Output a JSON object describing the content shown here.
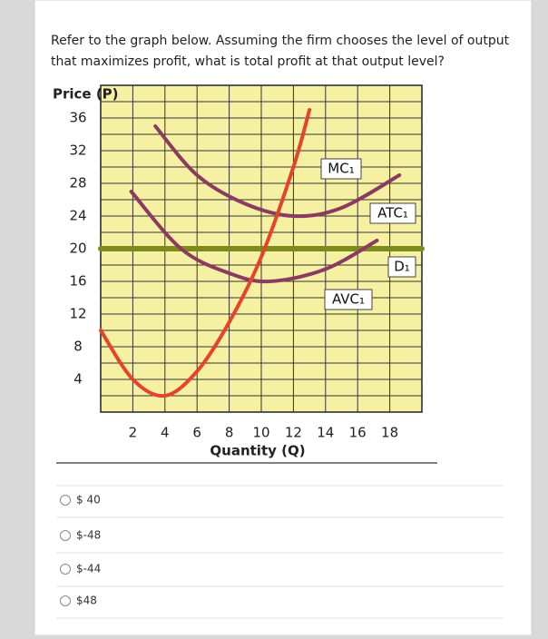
{
  "question": "Refer to the graph below. Assuming the firm chooses the level of output that maximizes profit, what is total profit at that output level?",
  "question_lines": [
    "Refer to the graph below. Assuming the firm chooses the level of output",
    "that maximizes profit, what is total profit at that output level?"
  ],
  "chart_data": {
    "type": "line",
    "y_label": "Price (P)",
    "x_label": "Quantity (Q)",
    "xlim": [
      0,
      20
    ],
    "ylim": [
      0,
      40
    ],
    "xticks": [
      2,
      4,
      6,
      8,
      10,
      12,
      14,
      16,
      18
    ],
    "yticks": [
      4,
      8,
      12,
      16,
      20,
      24,
      28,
      32,
      36
    ],
    "grid": true,
    "background": "#f6f0a2",
    "series": [
      {
        "name": "MC₁",
        "color": "#e3442b",
        "x": [
          0,
          2,
          4,
          6,
          8,
          10,
          12,
          13
        ],
        "values": [
          10,
          4,
          2,
          5,
          11,
          19,
          30,
          37
        ]
      },
      {
        "name": "ATC₁",
        "color": "#8b3b5f",
        "x": [
          3.4,
          6,
          9,
          12,
          15,
          18.6
        ],
        "values": [
          35,
          29,
          25.5,
          24,
          25,
          29
        ]
      },
      {
        "name": "AVC₁",
        "color": "#8b3b5f",
        "x": [
          1.9,
          5,
          8,
          10.5,
          14,
          17.2
        ],
        "values": [
          27,
          20,
          17,
          16,
          17.5,
          21
        ]
      },
      {
        "name": "D₁",
        "color": "#7d8a1c",
        "x": [
          0,
          20
        ],
        "values": [
          20,
          20
        ]
      }
    ]
  },
  "options": [
    "$ 40",
    "$-48",
    "$-44",
    "$48"
  ]
}
